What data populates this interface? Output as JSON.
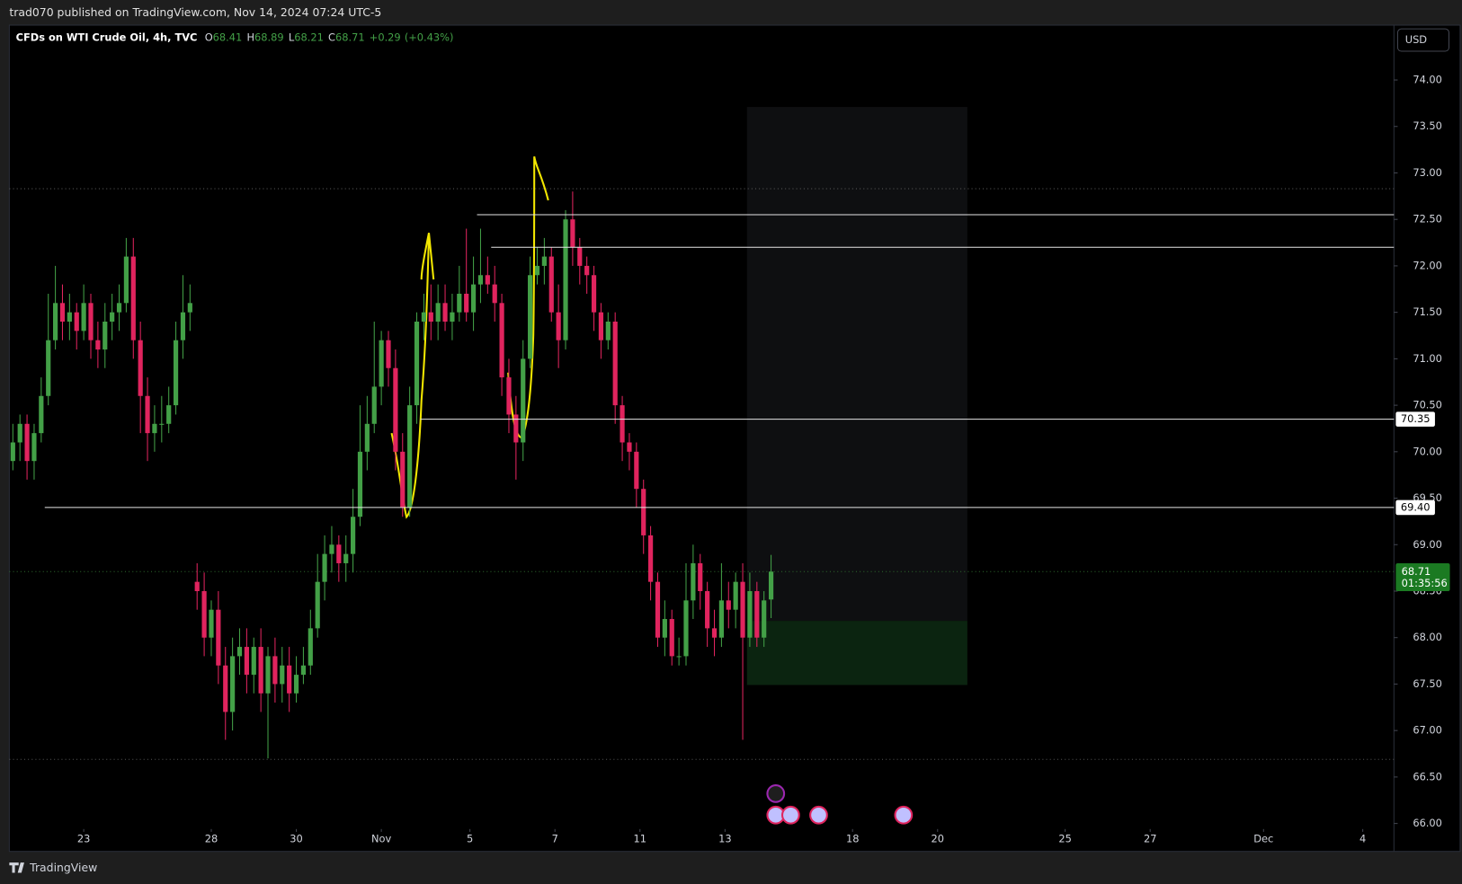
{
  "header": {
    "publisher": "trad070 published on TradingView.com, Nov 14, 2024 07:24 UTC-5"
  },
  "toolbar": {
    "currency": "USD"
  },
  "footer": {
    "brand": "TradingView"
  },
  "chart_data": {
    "type": "candlestick",
    "title": "CFDs on WTI Crude Oil, 4h, TVC",
    "legend_ohlc": [
      {
        "label": "O",
        "value": 68.41
      },
      {
        "label": "H",
        "value": 68.89
      },
      {
        "label": "L",
        "value": 68.21
      },
      {
        "label": "C",
        "value": 68.71
      }
    ],
    "change": {
      "value": 0.29,
      "label": "+0.29"
    },
    "change_pct": {
      "value": 0.43,
      "label": "(+0.43%)"
    },
    "up_color": "#43a047",
    "down_color": "#e0245e",
    "x": [
      0,
      1,
      2,
      3,
      4,
      5,
      6,
      7,
      8,
      9,
      10,
      11,
      12,
      13,
      14,
      15,
      16,
      17,
      18,
      19,
      20,
      21,
      22,
      23,
      24,
      25,
      26,
      27,
      28,
      29,
      30,
      31,
      32,
      33,
      34,
      35,
      36,
      37,
      38,
      39,
      40,
      41,
      42,
      43,
      44,
      45,
      46,
      47,
      48,
      49,
      50,
      51,
      52,
      53,
      54,
      55,
      56,
      57,
      58,
      59,
      60,
      61,
      62,
      63,
      64,
      65,
      66,
      67,
      68,
      69,
      70,
      71,
      72,
      73,
      74,
      75,
      76,
      77,
      78,
      79,
      80,
      81,
      82,
      83,
      84,
      85,
      86,
      87,
      88,
      89,
      90,
      91,
      92,
      93,
      94,
      95,
      96,
      97,
      98,
      99,
      100,
      101,
      102,
      103,
      104,
      105,
      106,
      107
    ],
    "open": [
      69.9,
      70.1,
      70.3,
      69.9,
      70.2,
      70.6,
      71.2,
      71.6,
      71.4,
      71.5,
      71.3,
      71.6,
      71.2,
      71.1,
      71.4,
      71.5,
      71.6,
      72.1,
      71.2,
      70.6,
      70.2,
      70.3,
      70.3,
      70.5,
      71.2,
      71.5,
      68.6,
      68.5,
      68.0,
      68.3,
      67.7,
      67.2,
      67.8,
      67.9,
      67.6,
      67.9,
      67.4,
      67.8,
      67.5,
      67.7,
      67.4,
      67.6,
      67.7,
      68.1,
      68.6,
      68.9,
      69.0,
      68.8,
      68.9,
      69.3,
      70.0,
      70.3,
      70.7,
      71.2,
      70.9,
      70.0,
      69.4,
      70.5,
      71.4,
      71.5,
      71.4,
      71.6,
      71.4,
      71.5,
      71.7,
      71.5,
      71.8,
      71.9,
      71.8,
      71.6,
      70.8,
      70.4,
      70.1,
      71.0,
      71.9,
      72.0,
      72.1,
      71.5,
      71.2,
      72.5,
      72.2,
      72.0,
      71.9,
      71.5,
      71.2,
      71.4,
      70.5,
      70.1,
      70.0,
      69.6,
      69.1,
      68.6,
      68.0,
      68.2,
      67.8,
      67.8,
      68.4,
      68.8,
      68.5,
      68.1,
      68.0,
      68.4,
      68.3,
      68.6,
      68.0,
      68.5,
      68.0,
      68.41
    ],
    "high": [
      70.3,
      70.4,
      70.4,
      70.3,
      70.8,
      71.7,
      72.0,
      71.8,
      71.7,
      71.6,
      71.8,
      71.7,
      71.4,
      71.6,
      71.7,
      71.8,
      72.3,
      72.3,
      71.4,
      70.8,
      70.5,
      70.6,
      70.7,
      71.4,
      71.9,
      71.8,
      68.8,
      68.7,
      68.4,
      68.5,
      67.9,
      68.0,
      68.1,
      68.1,
      68.0,
      68.1,
      67.9,
      68.0,
      67.9,
      67.9,
      67.8,
      67.9,
      68.3,
      68.9,
      69.1,
      69.2,
      69.1,
      69.1,
      69.6,
      70.5,
      70.6,
      71.4,
      71.3,
      71.3,
      71.1,
      70.2,
      70.7,
      71.5,
      71.7,
      71.8,
      71.8,
      71.8,
      71.7,
      72.0,
      72.4,
      72.1,
      72.4,
      72.1,
      72.0,
      71.7,
      71.0,
      70.6,
      71.2,
      72.1,
      72.2,
      72.3,
      72.2,
      71.8,
      72.6,
      72.8,
      72.3,
      72.1,
      72.0,
      71.6,
      71.5,
      71.5,
      70.6,
      70.2,
      70.1,
      69.7,
      69.2,
      68.7,
      68.4,
      68.3,
      68.0,
      68.8,
      69.0,
      68.9,
      68.6,
      68.3,
      68.8,
      68.6,
      68.7,
      68.8,
      68.7,
      68.6,
      68.5,
      68.89
    ],
    "low": [
      69.8,
      69.9,
      69.7,
      69.7,
      70.1,
      70.5,
      71.1,
      71.2,
      71.2,
      71.1,
      71.2,
      71.0,
      70.9,
      70.9,
      71.2,
      71.3,
      71.5,
      71.0,
      70.2,
      69.9,
      70.0,
      70.1,
      70.2,
      70.4,
      71.0,
      71.3,
      68.3,
      67.8,
      67.8,
      67.5,
      66.9,
      67.0,
      67.6,
      67.4,
      67.4,
      67.2,
      66.7,
      67.3,
      67.3,
      67.2,
      67.3,
      67.5,
      67.6,
      68.0,
      68.4,
      68.7,
      68.6,
      68.6,
      68.7,
      69.2,
      69.8,
      70.2,
      70.5,
      70.7,
      69.8,
      69.3,
      69.3,
      70.3,
      71.2,
      71.2,
      71.2,
      71.3,
      71.2,
      71.4,
      71.4,
      71.3,
      71.6,
      71.7,
      71.4,
      70.6,
      70.2,
      69.7,
      69.9,
      70.9,
      71.8,
      71.8,
      71.4,
      70.9,
      71.1,
      72.0,
      71.8,
      71.7,
      71.3,
      71.0,
      71.1,
      70.3,
      69.9,
      69.8,
      69.4,
      68.9,
      68.4,
      67.9,
      67.8,
      67.7,
      67.7,
      67.7,
      68.2,
      68.3,
      67.9,
      67.8,
      67.9,
      68.1,
      68.1,
      66.9,
      67.9,
      67.9,
      67.9,
      68.21
    ],
    "close": [
      70.1,
      70.3,
      69.9,
      70.2,
      70.6,
      71.2,
      71.6,
      71.4,
      71.5,
      71.3,
      71.6,
      71.2,
      71.1,
      71.4,
      71.5,
      71.6,
      72.1,
      71.2,
      70.6,
      70.2,
      70.3,
      70.3,
      70.5,
      71.2,
      71.5,
      71.6,
      68.5,
      68.0,
      68.3,
      67.7,
      67.2,
      67.8,
      67.9,
      67.6,
      67.9,
      67.4,
      67.8,
      67.5,
      67.7,
      67.4,
      67.6,
      67.7,
      68.1,
      68.6,
      68.9,
      69.0,
      68.8,
      68.9,
      69.3,
      70.0,
      70.3,
      70.7,
      71.2,
      70.9,
      70.0,
      69.4,
      70.5,
      71.4,
      71.5,
      71.4,
      71.6,
      71.4,
      71.5,
      71.7,
      71.5,
      71.8,
      71.9,
      71.8,
      71.6,
      70.8,
      70.4,
      70.1,
      71.0,
      71.9,
      72.0,
      72.1,
      71.5,
      71.2,
      72.5,
      72.2,
      72.0,
      71.9,
      71.5,
      71.2,
      71.4,
      70.5,
      70.1,
      70.0,
      69.6,
      69.1,
      68.6,
      68.0,
      68.2,
      67.8,
      67.8,
      68.4,
      68.8,
      68.5,
      68.1,
      68.0,
      68.4,
      68.3,
      68.6,
      68.0,
      68.5,
      68.0,
      68.4,
      68.71
    ],
    "xlim": [
      -0.5,
      194.9
    ],
    "xticks": [
      {
        "value": 10,
        "label": "23"
      },
      {
        "value": 28,
        "label": "28"
      },
      {
        "value": 40,
        "label": "30"
      },
      {
        "value": 52,
        "label": "Nov"
      },
      {
        "value": 64.5,
        "label": "5"
      },
      {
        "value": 76.5,
        "label": "7"
      },
      {
        "value": 88.5,
        "label": "11"
      },
      {
        "value": 100.5,
        "label": "13"
      },
      {
        "value": 118.5,
        "label": "18"
      },
      {
        "value": 130.5,
        "label": "20"
      },
      {
        "value": 148.5,
        "label": "25"
      },
      {
        "value": 160.5,
        "label": "27"
      },
      {
        "value": 176.5,
        "label": "Dec"
      },
      {
        "value": 190.5,
        "label": "4"
      }
    ],
    "ylim": [
      65.94,
      74.58
    ],
    "yticks": [
      {
        "value": 66,
        "label": "66.00"
      },
      {
        "value": 66.5,
        "label": "66.50"
      },
      {
        "value": 67,
        "label": "67.00"
      },
      {
        "value": 67.5,
        "label": "67.50"
      },
      {
        "value": 68,
        "label": "68.00"
      },
      {
        "value": 68.5,
        "label": "68.50"
      },
      {
        "value": 69,
        "label": "69.00"
      },
      {
        "value": 69.5,
        "label": "69.50"
      },
      {
        "value": 70,
        "label": "70.00"
      },
      {
        "value": 70.5,
        "label": "70.50"
      },
      {
        "value": 71,
        "label": "71.00"
      },
      {
        "value": 71.5,
        "label": "71.50"
      },
      {
        "value": 72,
        "label": "72.00"
      },
      {
        "value": 72.5,
        "label": "72.50"
      },
      {
        "value": 73,
        "label": "73.00"
      },
      {
        "value": 73.5,
        "label": "73.50"
      },
      {
        "value": 74,
        "label": "74.00"
      }
    ],
    "levels": [
      {
        "value": 72.55,
        "x_start": 65.5
      },
      {
        "value": 72.2,
        "x_start": 67.5
      },
      {
        "value": 70.35,
        "x_start": 57.5
      },
      {
        "value": 69.4,
        "x_start": 4.5,
        "label": "69.40"
      }
    ],
    "dotted_levels": [
      72.83,
      66.69
    ],
    "last_price": {
      "value": 68.71,
      "countdown": "01:35:56"
    },
    "position": {
      "x_start": 103.6,
      "x_end": 134.7,
      "top": 73.71,
      "entry": 68.18,
      "bottom": 67.49
    }
  }
}
